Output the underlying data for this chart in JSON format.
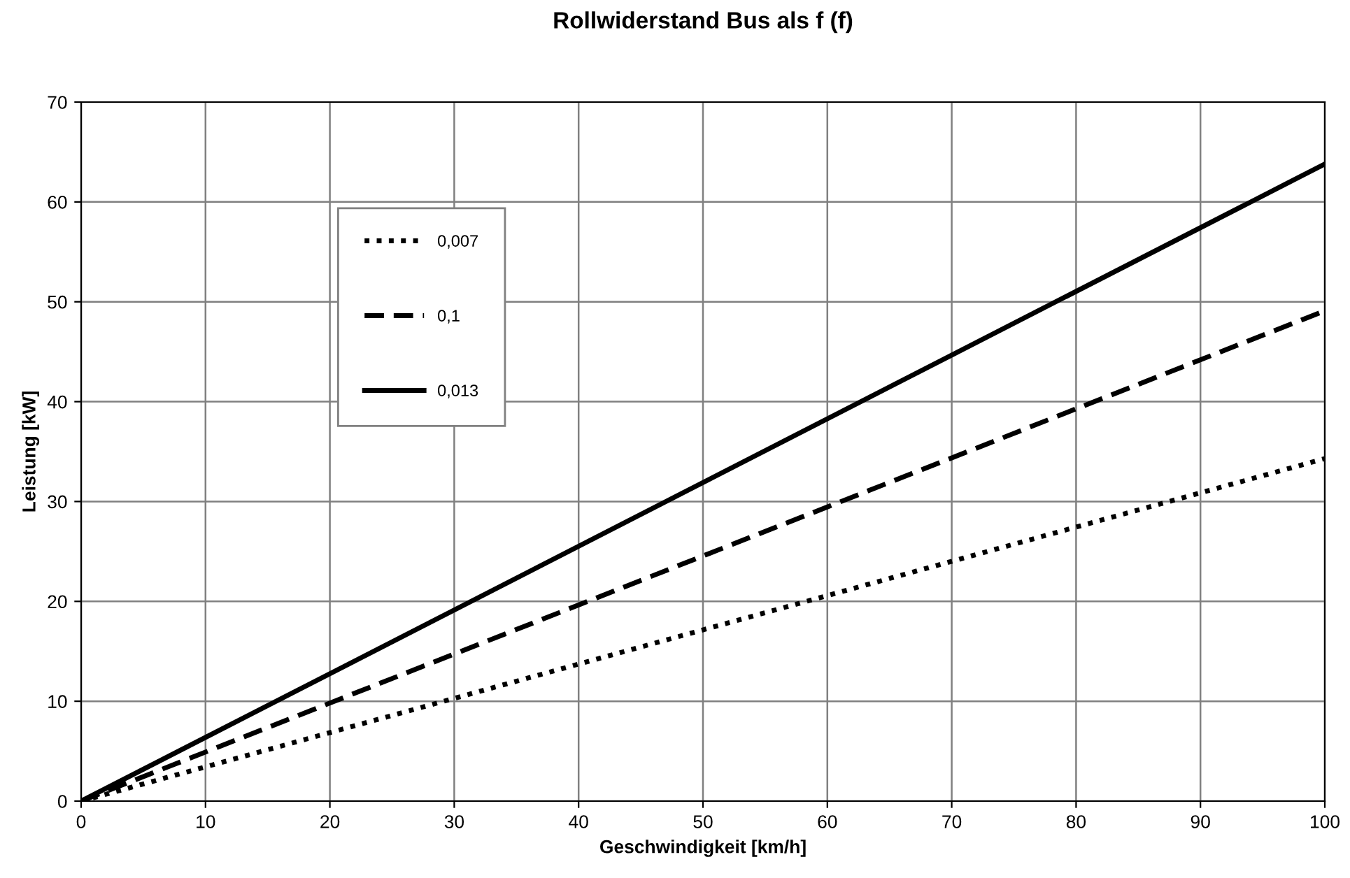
{
  "chart_data": {
    "type": "line",
    "title": "Rollwiderstand Bus als f (f)",
    "xlabel": "Geschwindigkeit [km/h]",
    "ylabel": "Leistung [kW]",
    "x": [
      0,
      100
    ],
    "series": [
      {
        "name": "0,007",
        "color": "#000000",
        "values": [
          0,
          34.3
        ],
        "line_style": "dotted"
      },
      {
        "name": "0,1",
        "color": "#000000",
        "values": [
          0,
          49.1
        ],
        "line_style": "dashed"
      },
      {
        "name": "0,013",
        "color": "#000000",
        "values": [
          0,
          63.8
        ],
        "line_style": "solid"
      }
    ],
    "xlim": [
      0,
      100
    ],
    "xticks": [
      0,
      10,
      20,
      30,
      40,
      50,
      60,
      70,
      80,
      90,
      100
    ],
    "ylim": [
      0,
      70
    ],
    "yticks": [
      0,
      10,
      20,
      30,
      40,
      50,
      60,
      70
    ],
    "grid": true,
    "legend": "top left",
    "marker": "none"
  }
}
